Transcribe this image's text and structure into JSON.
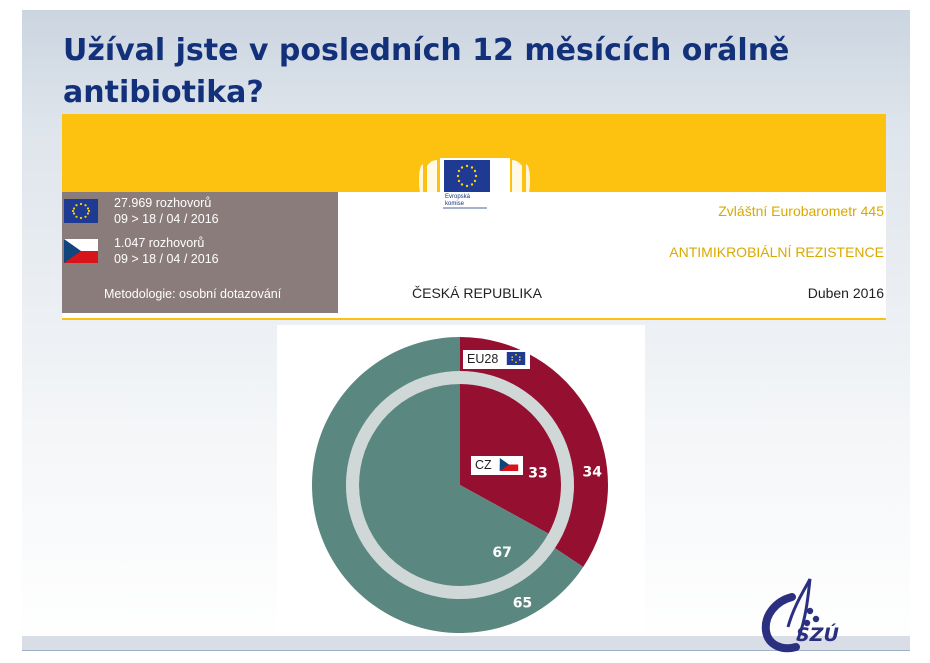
{
  "title": "Užíval jste v posledních 12 měsících orálně antibiotika?",
  "banner": {
    "eu_interviews": "27.969 rozhovorů",
    "eu_dates": "09 > 18 / 04 / 2016",
    "cz_interviews": "1.047 rozhovorů",
    "cz_dates": "09 > 18 / 04 / 2016",
    "methodology": "Metodologie: osobní dotazování",
    "ec_line1": "Evropská",
    "ec_line2": "komise",
    "survey_name": "Zvláštní Eurobarometr 445",
    "topic": "ANTIMIKROBIÁLNÍ REZISTENCE",
    "country": "ČESKÁ REPUBLIKA",
    "date": "Duben 2016"
  },
  "colors": {
    "yes": "#951030",
    "no": "#5b8781",
    "banner_yellow": "#fdc20f",
    "banner_meta": "#8a7c7a",
    "title": "#13307a"
  },
  "chart_data": {
    "type": "pie",
    "series": [
      {
        "name": "EU28",
        "values": [
          34,
          65
        ]
      },
      {
        "name": "CZ",
        "values": [
          33,
          67
        ]
      }
    ],
    "categories": [
      "",
      ""
    ],
    "colors": [
      "#951030",
      "#5b8781"
    ],
    "legend_labels": [
      "EU28",
      "CZ"
    ]
  },
  "logo": {
    "text": "SZÚ"
  }
}
